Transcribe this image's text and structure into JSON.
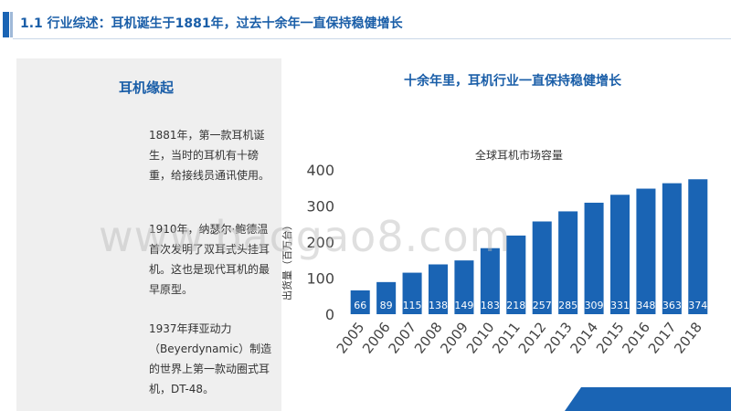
{
  "slide": {
    "title": "1.1 行业综述：耳机诞生于1881年，过去十余年一直保持稳健增长",
    "watermark": "www.baogao8.com"
  },
  "left_panel": {
    "heading": "耳机缘起",
    "paragraphs": [
      "1881年，第一款耳机诞生，当时的耳机有十磅重，给接线员通讯使用。",
      "1910年，纳瑟尔·鲍德温首次发明了双耳式头挂耳机。这也是现代耳机的最早原型。",
      "1937年拜亚动力（Beyerdynamic）制造的世界上第一款动圈式耳机，DT-48。"
    ]
  },
  "chart_heading": "十余年里，耳机行业一直保持稳健增长",
  "colors": {
    "accent": "#1a64b4",
    "bar": "#1a64b4",
    "title_text": "#1a5ea8"
  },
  "chart_data": {
    "type": "bar",
    "title": "全球耳机市场容量",
    "ylabel": "出货量（百万台）",
    "xlabel": "",
    "categories": [
      "2005",
      "2006",
      "2007",
      "2008",
      "2009",
      "2010",
      "2011",
      "2012",
      "2013",
      "2014",
      "2015",
      "2016",
      "2017",
      "2018"
    ],
    "values": [
      66,
      89,
      115,
      138,
      149,
      183,
      218,
      257,
      285,
      309,
      331,
      348,
      363,
      374
    ],
    "ylim": [
      0,
      400
    ],
    "yticks": [
      0,
      100,
      200,
      300,
      400
    ],
    "grid": false,
    "legend": "none"
  }
}
